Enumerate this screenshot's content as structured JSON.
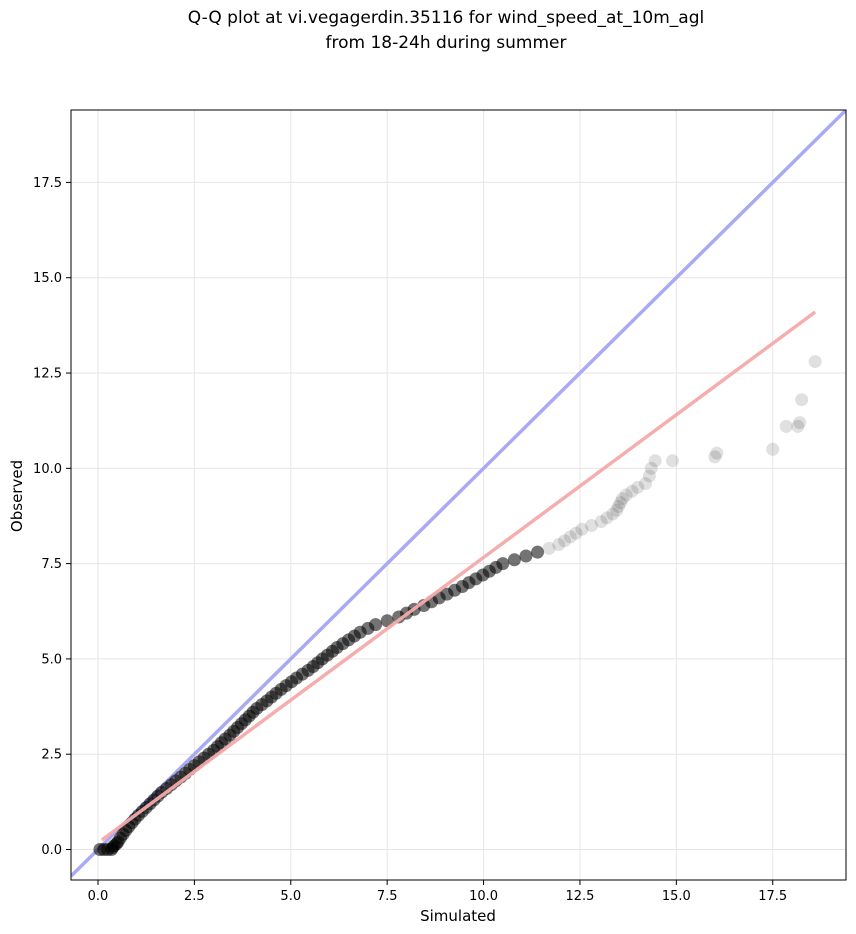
{
  "chart_data": {
    "type": "scatter",
    "title": "Q-Q plot at vi.vegagerdin.35116 for wind_speed_at_10m_agl",
    "subtitle": "from 18-24h during summer",
    "xlabel": "Simulated",
    "ylabel": "Observed",
    "xlim": [
      -0.7,
      19.4
    ],
    "ylim": [
      -0.8,
      19.4
    ],
    "x_ticks": [
      0.0,
      2.5,
      5.0,
      7.5,
      10.0,
      12.5,
      15.0,
      17.5
    ],
    "y_ticks": [
      0.0,
      2.5,
      5.0,
      7.5,
      10.0,
      12.5,
      15.0,
      17.5
    ],
    "x_tick_labels": [
      "0.0",
      "2.5",
      "5.0",
      "7.5",
      "10.0",
      "12.5",
      "15.0",
      "17.5"
    ],
    "y_tick_labels": [
      "0.0",
      "2.5",
      "5.0",
      "7.5",
      "10.0",
      "12.5",
      "15.0",
      "17.5"
    ],
    "grid": true,
    "colors": {
      "points": "#000000",
      "identity_line": "#aaaaf4",
      "fit_line": "#f4a9a9"
    },
    "identity_line": {
      "x": [
        -0.7,
        19.4
      ],
      "y": [
        -0.7,
        19.4
      ]
    },
    "fit_line": {
      "x": [
        0.1,
        18.6
      ],
      "y": [
        0.25,
        14.1
      ]
    },
    "points": [
      [
        0.05,
        0.0
      ],
      [
        0.15,
        0.0
      ],
      [
        0.25,
        0.0
      ],
      [
        0.35,
        0.0
      ],
      [
        0.38,
        0.05
      ],
      [
        0.42,
        0.1
      ],
      [
        0.48,
        0.15
      ],
      [
        0.52,
        0.2
      ],
      [
        0.58,
        0.3
      ],
      [
        0.65,
        0.4
      ],
      [
        0.72,
        0.5
      ],
      [
        0.8,
        0.6
      ],
      [
        0.88,
        0.7
      ],
      [
        0.96,
        0.8
      ],
      [
        1.05,
        0.9
      ],
      [
        1.15,
        1.0
      ],
      [
        1.25,
        1.1
      ],
      [
        1.35,
        1.2
      ],
      [
        1.45,
        1.3
      ],
      [
        1.55,
        1.4
      ],
      [
        1.65,
        1.5
      ],
      [
        1.78,
        1.6
      ],
      [
        1.9,
        1.7
      ],
      [
        2.02,
        1.8
      ],
      [
        2.15,
        1.9
      ],
      [
        2.27,
        2.0
      ],
      [
        2.38,
        2.1
      ],
      [
        2.5,
        2.2
      ],
      [
        2.62,
        2.3
      ],
      [
        2.75,
        2.4
      ],
      [
        2.87,
        2.5
      ],
      [
        3.0,
        2.6
      ],
      [
        3.1,
        2.7
      ],
      [
        3.2,
        2.8
      ],
      [
        3.3,
        2.9
      ],
      [
        3.42,
        3.0
      ],
      [
        3.52,
        3.1
      ],
      [
        3.62,
        3.2
      ],
      [
        3.72,
        3.3
      ],
      [
        3.82,
        3.4
      ],
      [
        3.92,
        3.5
      ],
      [
        4.02,
        3.6
      ],
      [
        4.12,
        3.7
      ],
      [
        4.25,
        3.8
      ],
      [
        4.38,
        3.9
      ],
      [
        4.5,
        4.0
      ],
      [
        4.62,
        4.1
      ],
      [
        4.75,
        4.2
      ],
      [
        4.88,
        4.3
      ],
      [
        5.02,
        4.4
      ],
      [
        5.15,
        4.5
      ],
      [
        5.3,
        4.6
      ],
      [
        5.45,
        4.7
      ],
      [
        5.58,
        4.8
      ],
      [
        5.7,
        4.9
      ],
      [
        5.82,
        5.0
      ],
      [
        5.95,
        5.1
      ],
      [
        6.08,
        5.2
      ],
      [
        6.2,
        5.3
      ],
      [
        6.35,
        5.4
      ],
      [
        6.5,
        5.5
      ],
      [
        6.65,
        5.6
      ],
      [
        6.8,
        5.7
      ],
      [
        7.0,
        5.8
      ],
      [
        7.2,
        5.9
      ],
      [
        7.5,
        6.0
      ],
      [
        7.8,
        6.1
      ],
      [
        8.0,
        6.2
      ],
      [
        8.2,
        6.3
      ],
      [
        8.45,
        6.4
      ],
      [
        8.65,
        6.5
      ],
      [
        8.85,
        6.6
      ],
      [
        9.05,
        6.7
      ],
      [
        9.25,
        6.8
      ],
      [
        9.45,
        6.9
      ],
      [
        9.62,
        7.0
      ],
      [
        9.8,
        7.1
      ],
      [
        9.98,
        7.2
      ],
      [
        10.15,
        7.3
      ],
      [
        10.32,
        7.4
      ],
      [
        10.5,
        7.5
      ],
      [
        10.8,
        7.6
      ],
      [
        11.1,
        7.7
      ],
      [
        11.4,
        7.8
      ],
      [
        11.7,
        7.9
      ],
      [
        11.95,
        8.0
      ],
      [
        12.1,
        8.1
      ],
      [
        12.25,
        8.2
      ],
      [
        12.4,
        8.3
      ],
      [
        12.55,
        8.4
      ],
      [
        12.8,
        8.5
      ],
      [
        13.05,
        8.6
      ],
      [
        13.2,
        8.7
      ],
      [
        13.35,
        8.8
      ],
      [
        13.45,
        8.9
      ],
      [
        13.5,
        9.0
      ],
      [
        13.55,
        9.1
      ],
      [
        13.6,
        9.2
      ],
      [
        13.7,
        9.3
      ],
      [
        13.85,
        9.4
      ],
      [
        14.0,
        9.5
      ],
      [
        14.2,
        9.6
      ],
      [
        14.3,
        9.8
      ],
      [
        14.35,
        10.0
      ],
      [
        14.45,
        10.2
      ],
      [
        14.9,
        10.2
      ],
      [
        16.0,
        10.3
      ],
      [
        16.05,
        10.4
      ],
      [
        17.5,
        10.5
      ],
      [
        17.85,
        11.1
      ],
      [
        18.15,
        11.1
      ],
      [
        18.2,
        11.2
      ],
      [
        18.25,
        11.8
      ],
      [
        18.6,
        12.8
      ]
    ]
  }
}
